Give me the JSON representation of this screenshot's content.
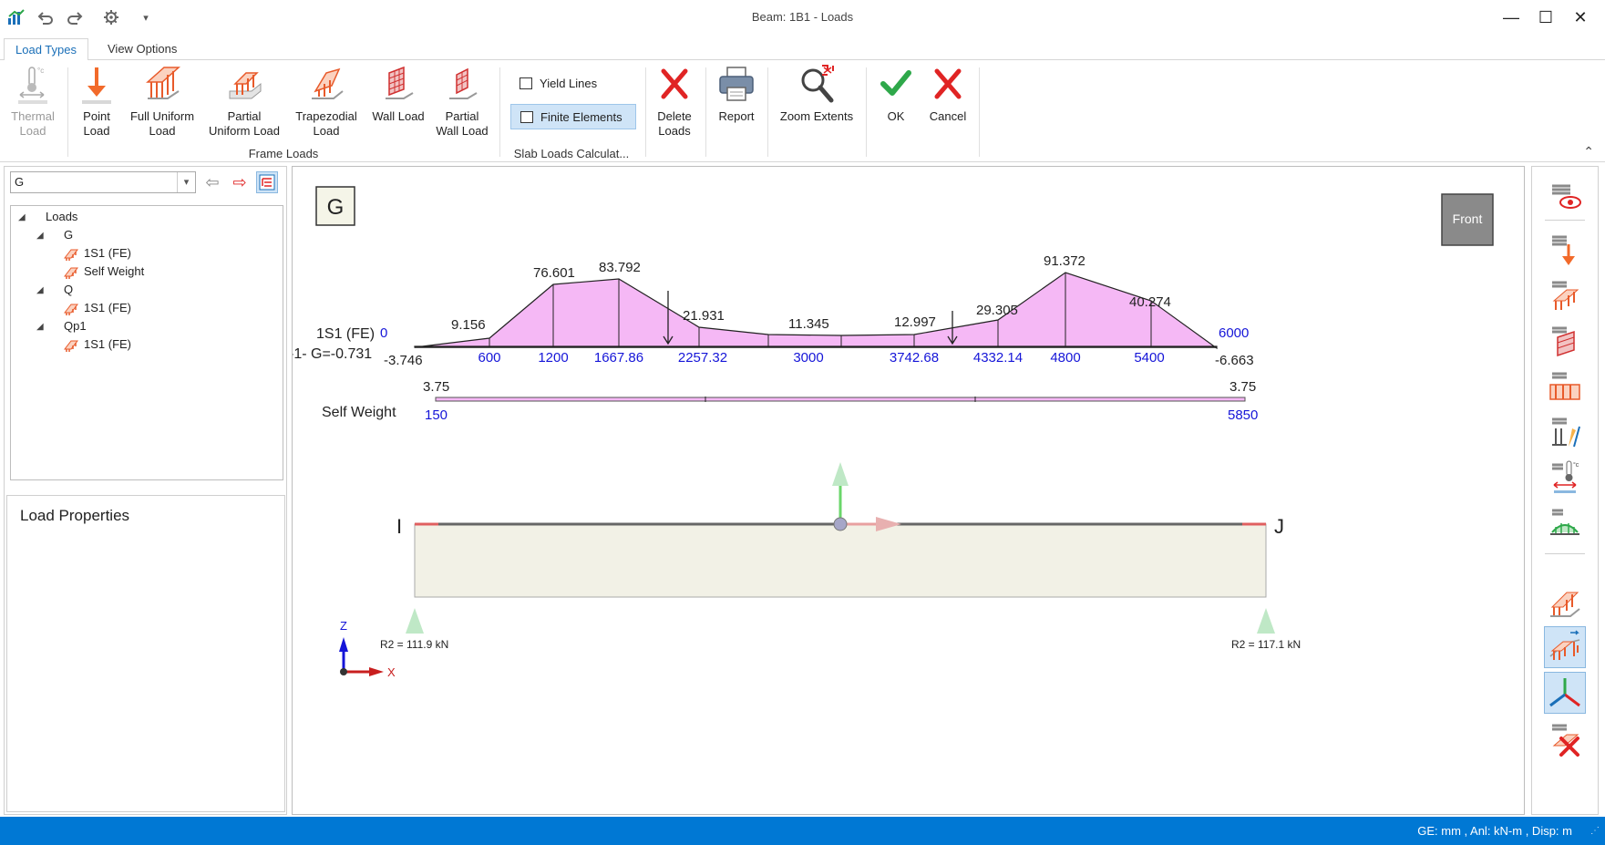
{
  "window": {
    "title": "Beam: 1B1 - Loads",
    "minimize": "—",
    "maximize": "☐",
    "close": "✕",
    "quick_access_dropdown": "▾"
  },
  "tabs": [
    {
      "label": "Load Types",
      "active": true
    },
    {
      "label": "View Options",
      "active": false
    }
  ],
  "ribbon": {
    "thermal": {
      "line1": "Thermal",
      "line2": "Load",
      "enabled": false
    },
    "point": {
      "line1": "Point",
      "line2": "Load"
    },
    "full_uniform": {
      "line1": "Full Uniform",
      "line2": "Load"
    },
    "partial_uniform": {
      "line1": "Partial",
      "line2": "Uniform Load"
    },
    "trapezoidal": {
      "line1": "Trapezodial",
      "line2": "Load"
    },
    "wall": {
      "line1": "Wall Load",
      "line2": ""
    },
    "partial_wall": {
      "line1": "Partial",
      "line2": "Wall Load"
    },
    "group_frame": "Frame Loads",
    "yield_lines": "Yield Lines",
    "finite_elements": "Finite Elements",
    "group_slab": "Slab Loads Calculat...",
    "delete": {
      "line1": "Delete",
      "line2": "Loads"
    },
    "report": "Report",
    "zoom": "Zoom Extents",
    "ok": "OK",
    "cancel": "Cancel",
    "collapse": "⌃"
  },
  "left": {
    "combo_value": "G",
    "combo_arrow": "▾",
    "prev_arrow": "⇦",
    "next_arrow": "⇨",
    "tree": {
      "root": "Loads",
      "groups": [
        {
          "label": "G",
          "items": [
            "1S1 (FE)",
            "Self Weight"
          ]
        },
        {
          "label": "Q",
          "items": [
            "1S1 (FE)"
          ]
        },
        {
          "label": "Qp1",
          "items": [
            "1S1 (FE)"
          ]
        }
      ]
    },
    "properties_title": "Load Properties"
  },
  "canvas": {
    "case_label": "G",
    "view_button": "Front",
    "row1": {
      "name": "1S1 (FE)",
      "subtitle": "-1-  G=-0.731",
      "start_pos": "0",
      "end_pos": "6000",
      "start_value": "-3.746",
      "end_value": "-6.663",
      "points": [
        {
          "pos": "600",
          "value": "9.156"
        },
        {
          "pos": "1200",
          "value": "76.601"
        },
        {
          "pos": "1667.86",
          "value": "83.792"
        },
        {
          "pos": "2257.32",
          "value": "21.931"
        },
        {
          "pos": "3000",
          "value": "11.345"
        },
        {
          "pos": "3742.68",
          "value": "12.997"
        },
        {
          "pos": "4332.14",
          "value": "29.305"
        },
        {
          "pos": "4800",
          "value": "91.372"
        },
        {
          "pos": "5400",
          "value": "40.274"
        }
      ]
    },
    "row2": {
      "name": "Self Weight",
      "start_value": "3.75",
      "end_value": "3.75",
      "start_pos": "150",
      "end_pos": "5850"
    },
    "beam": {
      "node_i": "I",
      "node_j": "J",
      "reaction_left": "R2 = 111.9 kN",
      "reaction_right": "R2 = 117.1 kN"
    },
    "axes": {
      "z": "Z",
      "x": "X"
    }
  },
  "status": {
    "units": "GE: mm , Anl: kN-m , Disp: m",
    "grip": "⋰"
  },
  "colors": {
    "accent": "#1a6fb8",
    "load_fill": "#f5b8f5",
    "status_bar": "#0078d4",
    "blue_text": "#1515d8"
  }
}
